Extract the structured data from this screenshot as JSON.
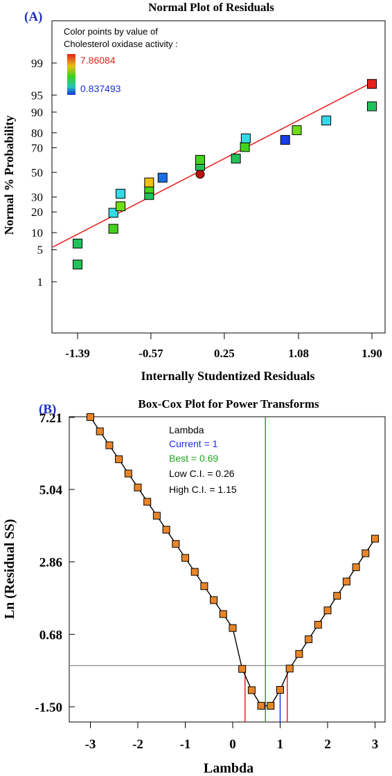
{
  "panel_a": {
    "tag": "(A)",
    "title": "Normal Plot of Residuals",
    "xlabel": "Internally Studentized Residuals",
    "ylabel": "Normal % Probability",
    "legend_title_1": "Color points by value of",
    "legend_title_2": "Cholesterol oxidase activity :",
    "legend_max": "7.86084",
    "legend_min": "0.837493",
    "x_ticks": [
      "-1.39",
      "-0.57",
      "0.25",
      "1.08",
      "1.90"
    ],
    "y_ticks": [
      "1",
      "5",
      "10",
      "20",
      "30",
      "50",
      "70",
      "80",
      "90",
      "95",
      "99"
    ]
  },
  "panel_b": {
    "tag": "(B)",
    "title": "Box-Cox Plot for Power Transforms",
    "xlabel": "Lambda",
    "ylabel": "Ln (Residual SS)",
    "legend_title": "Lambda",
    "legend_current": "Current = 1",
    "legend_best": "Best = 0.69",
    "legend_low": "Low C.I. = 0.26",
    "legend_high": "High C.I. = 1.15",
    "x_ticks": [
      "-3",
      "-2",
      "-1",
      "0",
      "1",
      "2",
      "3"
    ],
    "y_ticks": [
      "7.21",
      "5.04",
      "2.86",
      "0.68",
      "-1.50"
    ]
  },
  "colors": {
    "fit_line": "#e8201c",
    "current": "#1a2ee0",
    "best": "#1fa61f",
    "ci": "#e8201c",
    "ci_threshold": "#8c8c8c",
    "marker_b": "#e8852a",
    "legend_max": "#e8201c",
    "legend_min": "#1a2ee0"
  },
  "chart_data": [
    {
      "type": "scatter",
      "title": "Normal Plot of Residuals",
      "xlabel": "Internally Studentized Residuals",
      "ylabel": "Normal % Probability",
      "xlim": [
        -1.39,
        1.9
      ],
      "ylim_percent": [
        1,
        99
      ],
      "y_scale": "normal-probability",
      "color_scale": {
        "label": "Cholesterol oxidase activity",
        "min": 0.837493,
        "max": 7.86084
      },
      "points": [
        {
          "x": -1.39,
          "y": 2.5,
          "color": "#22c25a"
        },
        {
          "x": -1.39,
          "y": 6.5,
          "color": "#22c25a"
        },
        {
          "x": -0.99,
          "y": 11.5,
          "color": "#44d31d"
        },
        {
          "x": -0.99,
          "y": 19.5,
          "color": "#36d8e6"
        },
        {
          "x": -0.91,
          "y": 23.5,
          "color": "#6fdd1a"
        },
        {
          "x": -0.91,
          "y": 32.5,
          "color": "#36d8e6"
        },
        {
          "x": -0.59,
          "y": 31.5,
          "color": "#22c25a"
        },
        {
          "x": -0.59,
          "y": 36.5,
          "color": "#44d31d"
        },
        {
          "x": -0.59,
          "y": 41.5,
          "color": "#f0c015"
        },
        {
          "x": -0.44,
          "y": 45.5,
          "color": "#1a6ee6"
        },
        {
          "x": -0.02,
          "y": 48.5,
          "color": "#c01010",
          "shape": "circle"
        },
        {
          "x": -0.02,
          "y": 55.5,
          "color": "#22c25a"
        },
        {
          "x": -0.02,
          "y": 60.5,
          "color": "#44d31d"
        },
        {
          "x": 0.38,
          "y": 61.5,
          "color": "#22c25a"
        },
        {
          "x": 0.48,
          "y": 70.5,
          "color": "#44d31d"
        },
        {
          "x": 0.49,
          "y": 76.5,
          "color": "#36d8e6"
        },
        {
          "x": 0.93,
          "y": 75.5,
          "color": "#1a3ee6"
        },
        {
          "x": 1.06,
          "y": 81.5,
          "color": "#6fdd1a"
        },
        {
          "x": 1.39,
          "y": 86.5,
          "color": "#36d8e6"
        },
        {
          "x": 1.9,
          "y": 92.0,
          "color": "#22c25a"
        },
        {
          "x": 1.9,
          "y": 97.0,
          "color": "#e8201c"
        }
      ],
      "fit_line": [
        {
          "x": -1.83,
          "y": 5.6
        },
        {
          "x": 1.9,
          "y": 97.2
        }
      ]
    },
    {
      "type": "line",
      "title": "Box-Cox Plot for Power Transforms",
      "xlabel": "Lambda",
      "ylabel": "Ln (Residual SS)",
      "xlim": [
        -3.5,
        3.5
      ],
      "ylim": [
        -1.9,
        7.5
      ],
      "x": [
        -3.0,
        -2.8,
        -2.6,
        -2.4,
        -2.2,
        -2.0,
        -1.8,
        -1.6,
        -1.4,
        -1.2,
        -1.0,
        -0.8,
        -0.6,
        -0.4,
        -0.2,
        0.0,
        0.2,
        0.4,
        0.6,
        0.8,
        1.0,
        1.2,
        1.4,
        1.6,
        1.8,
        2.0,
        2.2,
        2.4,
        2.6,
        2.8,
        3.0
      ],
      "y": [
        7.22,
        6.79,
        6.37,
        5.95,
        5.52,
        5.1,
        4.67,
        4.25,
        3.83,
        3.4,
        2.98,
        2.56,
        2.13,
        1.71,
        1.29,
        0.87,
        -0.36,
        -1.0,
        -1.47,
        -1.47,
        -0.99,
        -0.35,
        0.09,
        0.53,
        0.97,
        1.4,
        1.84,
        2.27,
        2.7,
        3.12,
        3.56
      ],
      "lambda_current": 1,
      "lambda_best": 0.69,
      "lambda_ci": [
        0.26,
        1.15
      ],
      "ci_threshold_y": -0.26
    }
  ]
}
